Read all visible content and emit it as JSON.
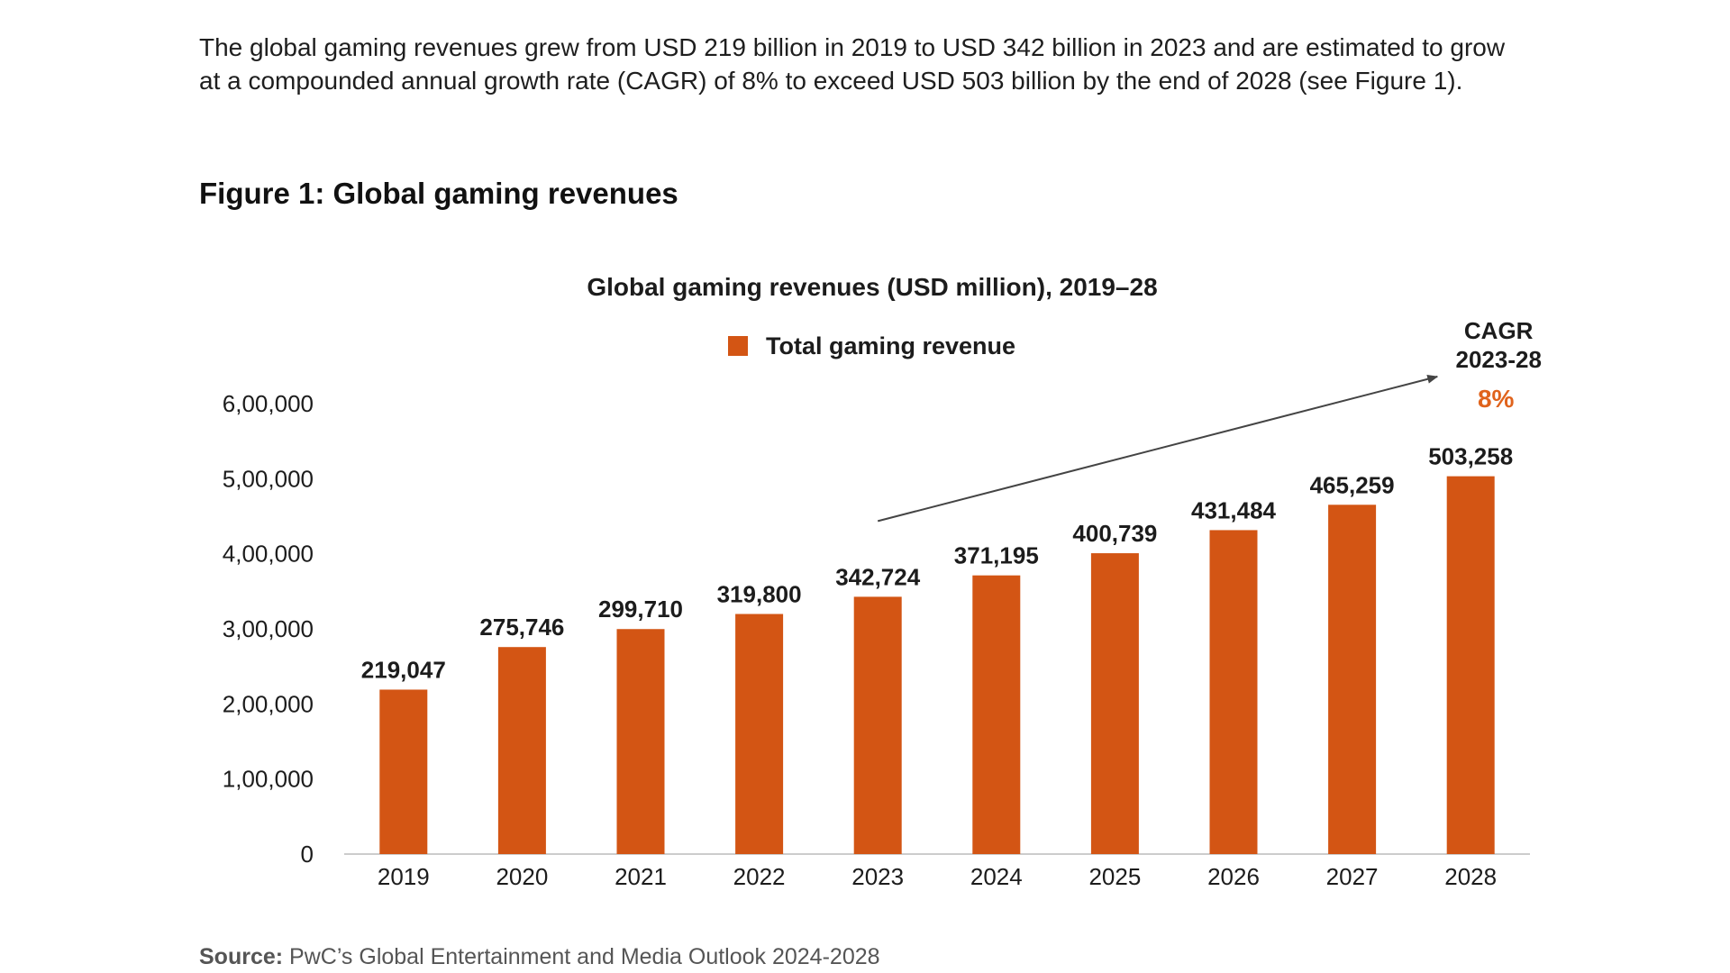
{
  "intro_text": "The global gaming revenues grew from USD 219 billion in 2019 to USD 342 billion in 2023 and are estimated to grow at a compounded annual growth rate (CAGR) of 8% to exceed USD 503 billion by the end of 2028 (see Figure 1).",
  "figure_title": "Figure 1: Global gaming revenues",
  "source": {
    "label": "Source:",
    "text": "PwC’s Global Entertainment and Media Outlook 2024-2028"
  },
  "chart_data": {
    "type": "bar",
    "title": "Global gaming revenues (USD million), 2019–28",
    "categories": [
      "2019",
      "2020",
      "2021",
      "2022",
      "2023",
      "2024",
      "2025",
      "2026",
      "2027",
      "2028"
    ],
    "series": [
      {
        "name": "Total gaming revenue",
        "values": [
          219047,
          275746,
          299710,
          319800,
          342724,
          371195,
          400739,
          431484,
          465259,
          503258
        ]
      }
    ],
    "data_labels": [
      "219,047",
      "275,746",
      "299,710",
      "319,800",
      "342,724",
      "371,195",
      "400,739",
      "431,484",
      "465,259",
      "503,258"
    ],
    "ylim": [
      0,
      600000
    ],
    "ytick_values": [
      0,
      100000,
      200000,
      300000,
      400000,
      500000,
      600000
    ],
    "ytick_labels": [
      "0",
      "1,00,000",
      "2,00,000",
      "3,00,000",
      "4,00,000",
      "5,00,000",
      "6,00,000"
    ],
    "xlabel": "",
    "ylabel": "",
    "legend_position": "top-center",
    "grid": false,
    "annotation": {
      "line1": "CAGR",
      "line2": "2023-28",
      "value": "8%",
      "from_category": "2023",
      "to_category": "2028"
    },
    "colors": {
      "bar": "#D35514",
      "annotation_value": "#E0631C",
      "axis": "#cccccc",
      "label": "#1c1c1c"
    }
  }
}
